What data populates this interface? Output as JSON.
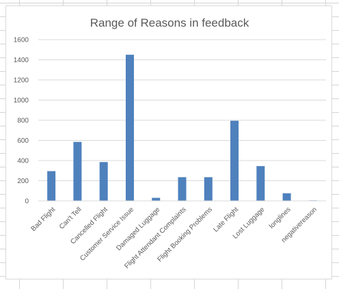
{
  "chart_data": {
    "type": "bar",
    "title": "Range of Reasons in feedback",
    "xlabel": "",
    "ylabel": "",
    "categories": [
      "Bad Flight",
      "Can't Tell",
      "Cancelled Flight",
      "Customer Service Issue",
      "Damaged Luggage",
      "Flight Attendant Complaints",
      "Flight Booking Problems",
      "Late Flight",
      "Lost Luggage",
      "longlines",
      "negativereason"
    ],
    "values": [
      295,
      585,
      385,
      1450,
      30,
      235,
      235,
      795,
      345,
      75,
      5
    ],
    "ylim": [
      0,
      1600
    ],
    "yticks": [
      "0",
      "200",
      "400",
      "600",
      "800",
      "1000",
      "1200",
      "1400",
      "1600"
    ],
    "grid": true,
    "legend": "none",
    "bar_color": "#4f81bd",
    "gridline_color": "#d9d9d9",
    "text_color": "#595959"
  }
}
